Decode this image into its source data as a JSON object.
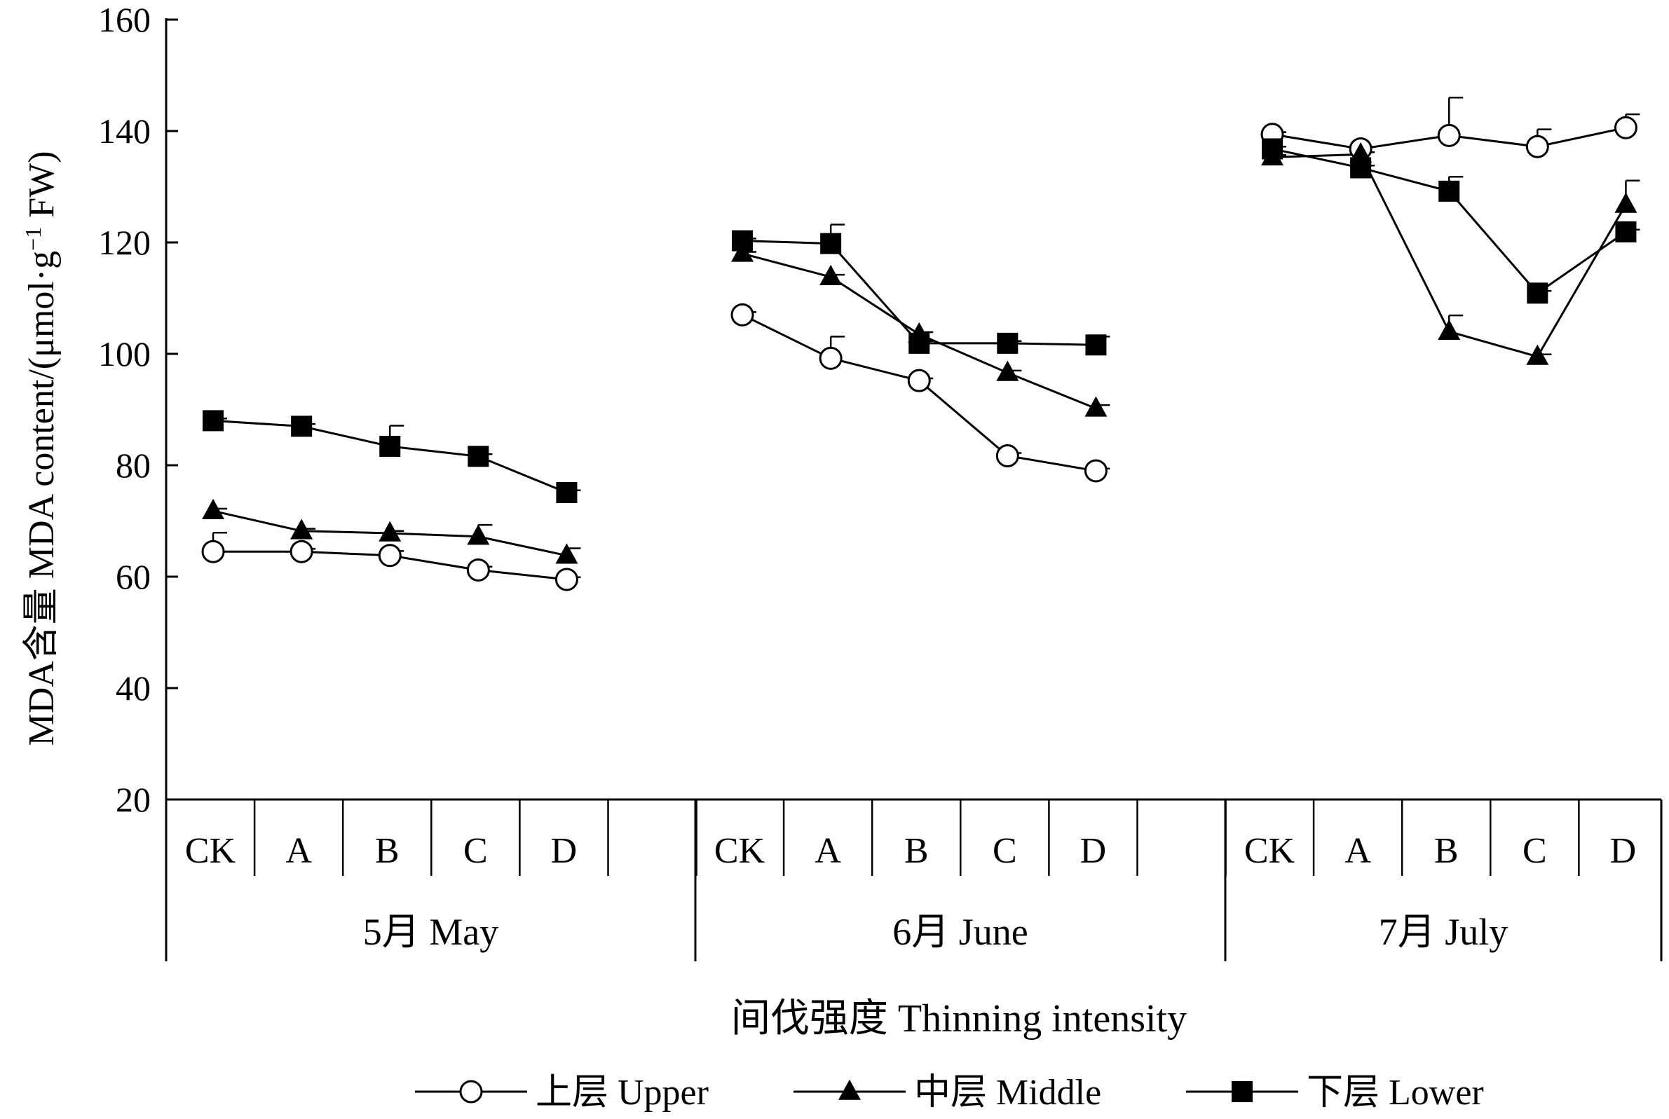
{
  "chart_data": {
    "type": "line",
    "title": "",
    "ylabel": "MDA含量  MDA content/(μmol·g⁻¹ FW)",
    "ylabel_parts": {
      "main": "MDA含量  MDA content/(μmol·g",
      "sup": "−1",
      "tail": " FW)"
    },
    "xlabel": "间伐强度  Thinning intensity",
    "ylim": [
      20,
      160
    ],
    "yticks": [
      20,
      40,
      60,
      80,
      100,
      120,
      140,
      160
    ],
    "groups": [
      {
        "label": "5月  May",
        "categories": [
          "CK",
          "A",
          "B",
          "C",
          "D"
        ]
      },
      {
        "label": "6月  June",
        "categories": [
          "CK",
          "A",
          "B",
          "C",
          "D"
        ]
      },
      {
        "label": "7月  July",
        "categories": [
          "CK",
          "A",
          "B",
          "C",
          "D"
        ]
      }
    ],
    "series": [
      {
        "name": "上层  Upper",
        "marker": "circle-open",
        "values": [
          [
            64.5,
            64.5,
            63.8,
            61.2,
            59.5
          ],
          [
            107,
            99.2,
            95.2,
            81.7,
            79
          ],
          [
            139.4,
            136.8,
            139.2,
            137.2,
            140.6
          ]
        ],
        "errors": [
          [
            3.4,
            0.5,
            0.8,
            0.6,
            0.4
          ],
          [
            0.5,
            3.9,
            0.4,
            0.5,
            0.4
          ],
          [
            0.4,
            0.4,
            6.8,
            3.1,
            2.4
          ]
        ]
      },
      {
        "name": "中层  Middle",
        "marker": "triangle-filled",
        "values": [
          [
            71.8,
            68.2,
            67.8,
            67.2,
            63.8
          ],
          [
            118,
            113.8,
            103.5,
            96.6,
            90.2
          ],
          [
            135.3,
            135.8,
            104,
            99.5,
            126.8
          ]
        ],
        "errors": [
          [
            0.4,
            0.4,
            0.4,
            2.1,
            1.3
          ],
          [
            0.3,
            0.4,
            0.4,
            0.4,
            0.6
          ],
          [
            0.4,
            0.4,
            2.9,
            0.4,
            4.3
          ]
        ]
      },
      {
        "name": "下层  Lower",
        "marker": "square-filled",
        "values": [
          [
            88,
            87,
            83.4,
            81.6,
            75.1
          ],
          [
            120.3,
            119.8,
            101.9,
            101.9,
            101.6
          ],
          [
            136.8,
            133.4,
            129.2,
            110.9,
            121.9
          ]
        ],
        "errors": [
          [
            0.4,
            0.4,
            3.7,
            0.4,
            0.4
          ],
          [
            0.4,
            3.4,
            0.4,
            0.4,
            1.5
          ],
          [
            0.4,
            0.4,
            2.6,
            0.4,
            0.4
          ]
        ]
      }
    ],
    "legend": {
      "placement": "bottom-center"
    },
    "grid": false
  }
}
